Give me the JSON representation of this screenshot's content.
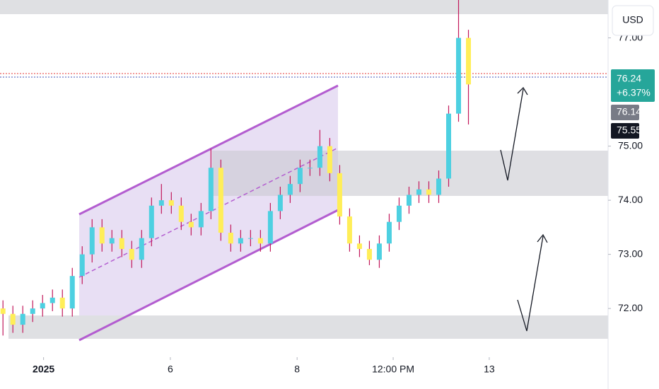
{
  "chart_data": {
    "type": "candlestick",
    "currency": "USD",
    "price_tags": [
      "76.24",
      "+6.37%",
      "76.14",
      "75.55"
    ],
    "x": [
      0,
      1,
      2,
      3,
      4,
      5,
      6,
      7,
      8,
      9,
      10,
      11,
      12,
      13,
      14,
      15,
      16,
      17,
      18,
      19,
      20,
      21,
      22,
      23,
      24,
      25,
      26,
      27,
      28,
      29,
      30,
      31,
      32,
      33,
      34,
      35,
      36,
      37,
      38,
      39,
      40,
      41,
      42,
      43,
      44,
      45,
      46,
      47
    ],
    "open": [
      72.0,
      71.9,
      71.7,
      71.9,
      72.0,
      72.1,
      72.2,
      72.0,
      72.6,
      73.0,
      73.5,
      73.2,
      73.3,
      73.1,
      72.9,
      73.3,
      73.9,
      74.0,
      73.9,
      73.6,
      73.5,
      73.8,
      74.6,
      73.4,
      73.2,
      73.3,
      73.3,
      73.2,
      73.8,
      74.1,
      74.3,
      74.6,
      74.6,
      75.0,
      74.5,
      73.7,
      73.2,
      73.1,
      72.9,
      73.2,
      73.6,
      73.9,
      74.1,
      74.2,
      74.1,
      74.4,
      75.6,
      77.0
    ],
    "high": [
      72.15,
      72.05,
      72.05,
      72.15,
      72.25,
      72.35,
      72.35,
      72.75,
      73.15,
      73.65,
      73.65,
      73.45,
      73.45,
      73.25,
      73.45,
      74.05,
      74.3,
      74.15,
      74.05,
      73.75,
      73.95,
      74.95,
      74.75,
      73.55,
      73.45,
      73.45,
      73.45,
      73.95,
      74.25,
      74.45,
      74.75,
      74.75,
      75.3,
      75.15,
      74.65,
      73.85,
      73.35,
      73.25,
      73.35,
      73.75,
      74.05,
      74.25,
      74.35,
      74.35,
      74.55,
      75.75,
      77.7,
      77.15
    ],
    "low": [
      71.5,
      71.55,
      71.55,
      71.75,
      71.85,
      71.95,
      71.85,
      71.85,
      72.45,
      72.85,
      73.05,
      73.05,
      72.95,
      72.75,
      72.75,
      73.15,
      73.75,
      73.75,
      73.45,
      73.35,
      73.35,
      73.65,
      73.25,
      73.05,
      73.05,
      73.15,
      73.05,
      73.05,
      73.65,
      73.95,
      74.15,
      74.45,
      74.45,
      74.35,
      73.55,
      73.05,
      72.95,
      72.8,
      72.75,
      73.05,
      73.45,
      73.75,
      73.95,
      73.95,
      73.95,
      74.25,
      75.45,
      75.4
    ],
    "close": [
      71.9,
      71.7,
      71.9,
      72.0,
      72.1,
      72.2,
      72.0,
      72.6,
      73.0,
      73.5,
      73.2,
      73.3,
      73.1,
      72.9,
      73.3,
      73.9,
      74.0,
      73.9,
      73.6,
      73.5,
      73.8,
      74.6,
      73.4,
      73.2,
      73.3,
      73.3,
      73.2,
      73.8,
      74.1,
      74.3,
      74.6,
      74.6,
      75.0,
      74.5,
      73.7,
      73.2,
      73.1,
      72.9,
      73.2,
      73.6,
      73.9,
      74.1,
      74.2,
      74.1,
      74.4,
      75.6,
      77.0,
      76.14
    ],
    "up_color": "#4dd0e1",
    "down_color": "#ffee58",
    "wick_color": "#c2185b",
    "xlim": [
      -0.3,
      61.1
    ],
    "xticks": [
      {
        "value": 4.1,
        "label": "2025"
      },
      {
        "value": 16.9,
        "label": "6"
      },
      {
        "value": 29.7,
        "label": "8"
      },
      {
        "value": 39.4,
        "label": "12:00 PM"
      },
      {
        "value": 49.1,
        "label": "13"
      }
    ],
    "ylim": [
      71.1,
      77.7
    ],
    "yticks": [
      {
        "value": 72,
        "label": "72.00"
      },
      {
        "value": 73,
        "label": "73.00"
      },
      {
        "value": 74,
        "label": "74.00"
      },
      {
        "value": 75,
        "label": "75.00"
      },
      {
        "value": 77,
        "label": "77.00"
      }
    ]
  }
}
